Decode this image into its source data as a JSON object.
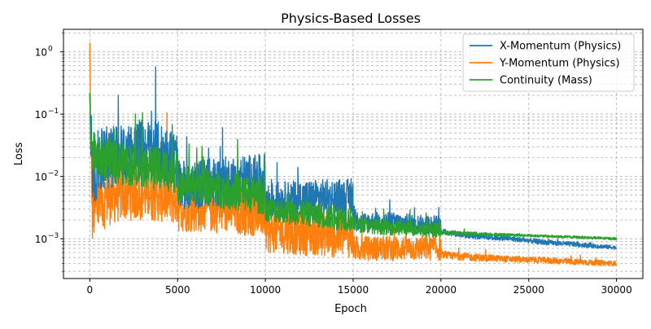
{
  "chart_data": {
    "type": "line",
    "title": "Physics-Based Losses",
    "xlabel": "Epoch",
    "ylabel": "Loss",
    "xlim": [
      -1500,
      31500
    ],
    "ylim": [
      0.00023,
      2.3
    ],
    "yscale": "log",
    "grid": true,
    "legend": "top-right",
    "x_ticks": [
      0,
      5000,
      10000,
      15000,
      20000,
      25000,
      30000
    ],
    "y_ticks": [
      {
        "value": 0.001,
        "base": "10",
        "exp": "−3"
      },
      {
        "value": 0.01,
        "base": "10",
        "exp": "−2"
      },
      {
        "value": 0.1,
        "base": "10",
        "exp": "−1"
      },
      {
        "value": 1,
        "base": "10",
        "exp": "0"
      }
    ],
    "series": [
      {
        "name": "X-Momentum (Physics)",
        "color": "#1f77b4",
        "x": [
          0,
          50,
          150,
          300,
          500,
          1000,
          2000,
          3000,
          4000,
          4999,
          5001,
          6000,
          7000,
          8000,
          9000,
          9999,
          10001,
          11000,
          12000,
          13000,
          14000,
          14999,
          15001,
          16000,
          17000,
          18000,
          19000,
          19999,
          20001,
          22000,
          24000,
          26000,
          28000,
          30000
        ],
        "y": [
          0.2,
          0.04,
          0.012,
          0.013,
          0.016,
          0.02,
          0.024,
          0.027,
          0.024,
          0.018,
          0.007,
          0.0075,
          0.008,
          0.0085,
          0.009,
          0.009,
          0.004,
          0.0042,
          0.0044,
          0.0045,
          0.0046,
          0.0046,
          0.0018,
          0.0019,
          0.0019,
          0.0018,
          0.0017,
          0.0017,
          0.0013,
          0.0011,
          0.001,
          0.00087,
          0.0008,
          0.00072
        ],
        "noise": [
          0.0,
          0.2,
          0.5,
          0.55,
          0.55,
          0.5,
          0.5,
          0.5,
          0.5,
          0.45,
          0.4,
          0.4,
          0.4,
          0.4,
          0.4,
          0.4,
          0.3,
          0.3,
          0.3,
          0.3,
          0.3,
          0.3,
          0.15,
          0.15,
          0.15,
          0.15,
          0.15,
          0.15,
          0.05,
          0.05,
          0.04,
          0.04,
          0.04,
          0.03
        ]
      },
      {
        "name": "Y-Momentum (Physics)",
        "color": "#ff7f0e",
        "x": [
          0,
          50,
          150,
          300,
          500,
          1000,
          2000,
          3000,
          4000,
          4999,
          5001,
          6000,
          7000,
          8000,
          9000,
          9999,
          10001,
          11000,
          12000,
          13000,
          14000,
          14999,
          15001,
          16000,
          17000,
          18000,
          19000,
          19999,
          20001,
          22000,
          24000,
          26000,
          28000,
          30000
        ],
        "y": [
          1.4,
          0.05,
          0.0025,
          0.003,
          0.0035,
          0.0045,
          0.0055,
          0.0055,
          0.0052,
          0.0045,
          0.0032,
          0.0032,
          0.0031,
          0.003,
          0.0028,
          0.0026,
          0.0013,
          0.0013,
          0.0012,
          0.0012,
          0.0011,
          0.0011,
          0.0007,
          0.0007,
          0.0007,
          0.0007,
          0.0007,
          0.0007,
          0.00055,
          0.0005,
          0.00047,
          0.00045,
          0.00042,
          0.0004
        ],
        "noise": [
          0.0,
          0.2,
          0.5,
          0.5,
          0.5,
          0.45,
          0.45,
          0.45,
          0.45,
          0.45,
          0.4,
          0.4,
          0.4,
          0.4,
          0.4,
          0.4,
          0.35,
          0.35,
          0.35,
          0.35,
          0.35,
          0.35,
          0.2,
          0.2,
          0.2,
          0.2,
          0.2,
          0.2,
          0.06,
          0.06,
          0.05,
          0.05,
          0.05,
          0.04
        ]
      },
      {
        "name": "Continuity (Mass)",
        "color": "#2ca02c",
        "x": [
          0,
          50,
          150,
          300,
          500,
          1000,
          2000,
          3000,
          4000,
          4999,
          5001,
          6000,
          7000,
          8000,
          9000,
          9999,
          10001,
          11000,
          12000,
          13000,
          14000,
          14999,
          15001,
          16000,
          17000,
          18000,
          19000,
          19999,
          20001,
          22000,
          24000,
          26000,
          28000,
          30000
        ],
        "y": [
          0.22,
          0.03,
          0.025,
          0.022,
          0.02,
          0.018,
          0.016,
          0.015,
          0.013,
          0.012,
          0.008,
          0.0072,
          0.0065,
          0.0058,
          0.0052,
          0.0048,
          0.003,
          0.0028,
          0.0026,
          0.0024,
          0.0022,
          0.0021,
          0.0017,
          0.0016,
          0.0015,
          0.0015,
          0.0014,
          0.0014,
          0.00125,
          0.0012,
          0.00115,
          0.0011,
          0.00105,
          0.001
        ],
        "noise": [
          0.0,
          0.15,
          0.35,
          0.35,
          0.35,
          0.35,
          0.35,
          0.35,
          0.35,
          0.35,
          0.3,
          0.3,
          0.3,
          0.3,
          0.3,
          0.3,
          0.2,
          0.2,
          0.2,
          0.2,
          0.2,
          0.2,
          0.12,
          0.12,
          0.12,
          0.12,
          0.12,
          0.12,
          0.03,
          0.03,
          0.02,
          0.02,
          0.02,
          0.02
        ]
      }
    ]
  }
}
